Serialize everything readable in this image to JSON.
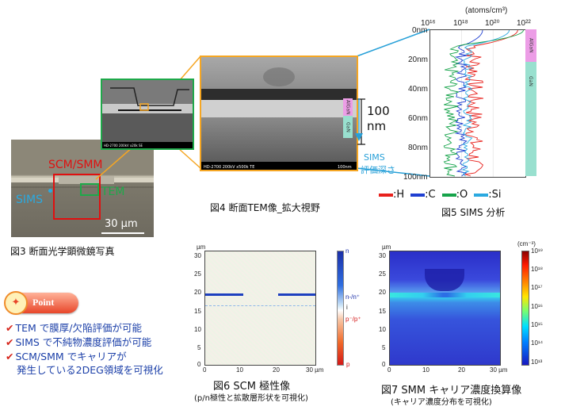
{
  "fig3": {
    "caption": "図3  断面光学顕微鏡写真",
    "label_scm_smm": "SCM/SMM",
    "label_sims": "SIMS",
    "label_tem": "TEM",
    "scale_bar": "30 µm"
  },
  "fig4": {
    "caption": "図4 断面TEM像_拡大視野",
    "layer_algan": "AlGaN",
    "layer_gan": "GaN",
    "thickness_value": "100",
    "thickness_unit": "nm",
    "sims_depth_line1": "SIMS",
    "sims_depth_line2": "評価深さ",
    "tem_info_text": "HD-2700  200kV  x500k  TE",
    "tem_scale_text": "100nm",
    "overview_info_text": "HD-2700  200kV  x20k  SE"
  },
  "fig5": {
    "caption": "図5 SIMS 分析",
    "unit": "(atoms/cm³)",
    "x_ticks": [
      "10¹⁶",
      "10¹⁸",
      "10²⁰",
      "10²²"
    ],
    "y_ticks": [
      "0nm",
      "20nm",
      "40nm",
      "60nm",
      "80nm",
      "100nm"
    ],
    "layer_algan": "AlGaN",
    "layer_gan": "GaN",
    "legend": [
      {
        "label": ":H",
        "color": "#e8211c"
      },
      {
        "label": ":C",
        "color": "#1f3fd1"
      },
      {
        "label": ":O",
        "color": "#16a34a"
      },
      {
        "label": ":Si",
        "color": "#2aa9e0"
      }
    ]
  },
  "fig6": {
    "caption": "図6 SCM 極性像",
    "sub": "(p/n極性と拡散層形状を可視化)",
    "unit": "µm",
    "x_ticks": [
      "0",
      "10",
      "20",
      "30 µm"
    ],
    "y_ticks": [
      "30",
      "25",
      "20",
      "15",
      "10",
      "5",
      "0"
    ],
    "cb_labels": [
      "n",
      "n-/n⁺",
      "i",
      "p⁻/p⁺",
      "p"
    ]
  },
  "fig7": {
    "caption": "図7 SMM キャリア濃度換算像",
    "sub": "(キャリア濃度分布を可視化)",
    "unit": "µm",
    "x_ticks": [
      "0",
      "10",
      "20",
      "30 µm"
    ],
    "y_ticks": [
      "30",
      "25",
      "20",
      "15",
      "10",
      "5",
      "0"
    ],
    "cb_unit": "(cm⁻³)",
    "cb_labels": [
      "10¹⁹",
      "10¹⁸",
      "10¹⁷",
      "10¹⁶",
      "10¹⁵",
      "10¹⁴",
      "10¹³"
    ]
  },
  "points": {
    "badge": "Point",
    "items": [
      "TEM で膜厚/欠陥評価が可能",
      "SIMS で不純物濃度評価が可能",
      "SCM/SMM でキャリアが",
      "発生している2DEG領域を可視化"
    ]
  }
}
